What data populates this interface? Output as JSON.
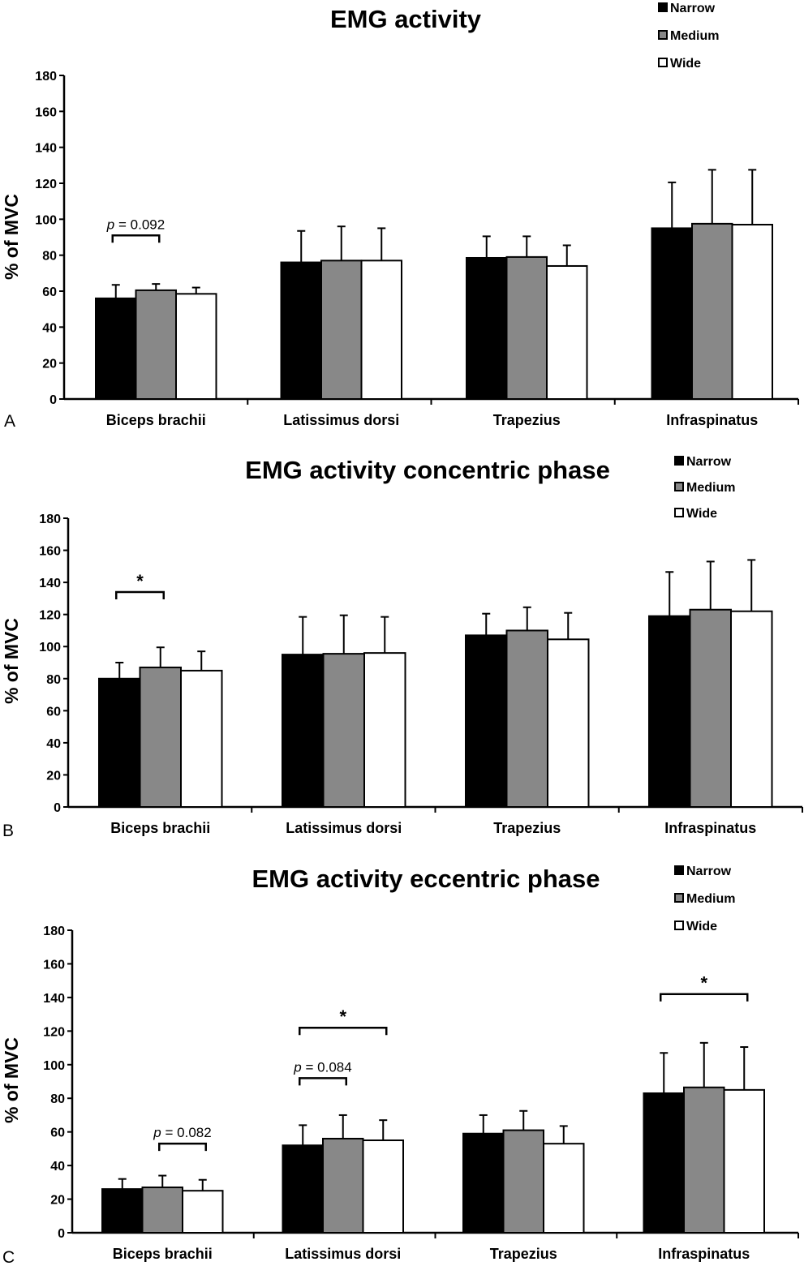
{
  "chart_data": [
    {
      "type": "bar",
      "panel": "A",
      "title": "EMG activity",
      "ylabel": "% of MVC",
      "ylim": [
        0,
        180
      ],
      "yticks": [
        "0",
        "20",
        "40",
        "60",
        "80",
        "100",
        "120",
        "140",
        "160",
        "180"
      ],
      "categories": [
        "Biceps brachii",
        "Latissimus dorsi",
        "Trapezius",
        "Infraspinatus"
      ],
      "legend_position": "top-right",
      "series": [
        {
          "name": "Narrow",
          "color": "#000000",
          "values": [
            56,
            76,
            78.5,
            95
          ],
          "errors": [
            7.5,
            17.5,
            12,
            25.5
          ]
        },
        {
          "name": "Medium",
          "color": "#888888",
          "values": [
            60.5,
            77,
            79,
            97.5
          ],
          "errors": [
            3.5,
            19,
            11.5,
            30
          ]
        },
        {
          "name": "Wide",
          "color": "#ffffff",
          "values": [
            58.5,
            77,
            74,
            97
          ],
          "errors": [
            3.5,
            18,
            11.5,
            30.5
          ]
        }
      ],
      "annotations": [
        {
          "label_prefix": "p",
          "label": " = 0.092",
          "from": {
            "category": 0,
            "series": 0
          },
          "to": {
            "category": 0,
            "series": 1
          },
          "level": 91
        }
      ]
    },
    {
      "type": "bar",
      "panel": "B",
      "title": "EMG activity concentric phase",
      "ylabel": "% of MVC",
      "ylim": [
        0,
        180
      ],
      "yticks": [
        "0",
        "20",
        "40",
        "60",
        "80",
        "100",
        "120",
        "140",
        "160",
        "180"
      ],
      "categories": [
        "Biceps brachii",
        "Latissimus dorsi",
        "Trapezius",
        "Infraspinatus"
      ],
      "legend_position": "top-right",
      "series": [
        {
          "name": "Narrow",
          "color": "#000000",
          "values": [
            80,
            95,
            107,
            119
          ],
          "errors": [
            10,
            23.5,
            13.5,
            27.5
          ]
        },
        {
          "name": "Medium",
          "color": "#888888",
          "values": [
            87,
            95.5,
            110,
            123
          ],
          "errors": [
            12.5,
            24,
            14.5,
            30
          ]
        },
        {
          "name": "Wide",
          "color": "#ffffff",
          "values": [
            85,
            96,
            104.5,
            122
          ],
          "errors": [
            12,
            22.5,
            16.5,
            32
          ]
        }
      ],
      "annotations": [
        {
          "label_prefix": "",
          "label": "*",
          "from": {
            "category": 0,
            "series": 0
          },
          "to": {
            "category": 0,
            "series": 1
          },
          "level": 134
        }
      ]
    },
    {
      "type": "bar",
      "panel": "C",
      "title": "EMG activity eccentric phase",
      "ylabel": "% of MVC",
      "ylim": [
        0,
        180
      ],
      "yticks": [
        "0",
        "20",
        "40",
        "60",
        "80",
        "100",
        "120",
        "140",
        "160",
        "180"
      ],
      "categories": [
        "Biceps brachii",
        "Latissimus dorsi",
        "Trapezius",
        "Infraspinatus"
      ],
      "legend_position": "top-right",
      "series": [
        {
          "name": "Narrow",
          "color": "#000000",
          "values": [
            26,
            52,
            59,
            83
          ],
          "errors": [
            6,
            12,
            11,
            24
          ]
        },
        {
          "name": "Medium",
          "color": "#888888",
          "values": [
            27,
            56,
            61,
            86.5
          ],
          "errors": [
            7,
            14,
            11.5,
            26.5
          ]
        },
        {
          "name": "Wide",
          "color": "#ffffff",
          "values": [
            25,
            55,
            53,
            85
          ],
          "errors": [
            6.5,
            12,
            10.5,
            25.5
          ]
        }
      ],
      "annotations": [
        {
          "label_prefix": "p",
          "label": " = 0.082",
          "from": {
            "category": 0,
            "series": 1
          },
          "to": {
            "category": 0,
            "series": 2
          },
          "level": 53
        },
        {
          "label_prefix": "p",
          "label": " = 0.084",
          "from": {
            "category": 1,
            "series": 0
          },
          "to": {
            "category": 1,
            "series": 1
          },
          "level": 92
        },
        {
          "label_prefix": "",
          "label": "*",
          "from": {
            "category": 1,
            "series": 0
          },
          "to": {
            "category": 1,
            "series": 2
          },
          "level": 122
        },
        {
          "label_prefix": "",
          "label": "*",
          "from": {
            "category": 3,
            "series": 0
          },
          "to": {
            "category": 3,
            "series": 2
          },
          "level": 142
        }
      ]
    }
  ]
}
